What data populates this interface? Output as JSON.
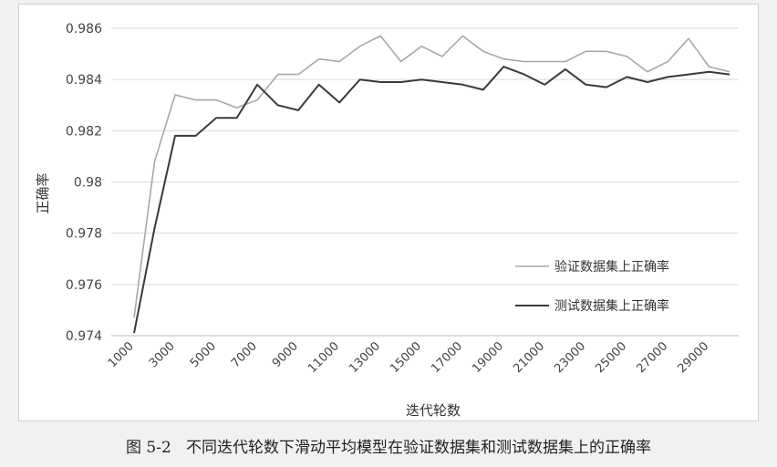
{
  "caption": "图 5-2   不同迭代轮数下滑动平均模型在验证数据集和测试数据集上的正确率",
  "chart_data": {
    "type": "line",
    "xlabel": "迭代轮数",
    "ylabel": "正确率",
    "x": [
      1000,
      2000,
      3000,
      4000,
      5000,
      6000,
      7000,
      8000,
      9000,
      10000,
      11000,
      12000,
      13000,
      14000,
      15000,
      16000,
      17000,
      18000,
      19000,
      20000,
      21000,
      22000,
      23000,
      24000,
      25000,
      26000,
      27000,
      28000,
      29000,
      30000
    ],
    "x_tick_labels": [
      "1000",
      "3000",
      "5000",
      "7000",
      "9000",
      "11000",
      "13000",
      "15000",
      "17000",
      "19000",
      "21000",
      "23000",
      "25000",
      "27000",
      "29000"
    ],
    "y_tick_labels": [
      "0.974",
      "0.976",
      "0.978",
      "0.98",
      "0.982",
      "0.984",
      "0.986"
    ],
    "ylim": [
      0.974,
      0.986
    ],
    "grid": "horizontal",
    "legend_position": "right",
    "series": [
      {
        "name": "验证数据集上正确率",
        "color": "#a8a8a8",
        "values": [
          0.9747,
          0.9808,
          0.9834,
          0.9832,
          0.9832,
          0.9829,
          0.9832,
          0.9842,
          0.9842,
          0.9848,
          0.9847,
          0.9853,
          0.9857,
          0.9847,
          0.9853,
          0.9849,
          0.9857,
          0.9851,
          0.9848,
          0.9847,
          0.9847,
          0.9847,
          0.9851,
          0.9851,
          0.9849,
          0.9843,
          0.9847,
          0.9856,
          0.9845,
          0.9843
        ]
      },
      {
        "name": "测试数据集上正确率",
        "color": "#3a3a3a",
        "values": [
          0.9741,
          0.9782,
          0.9818,
          0.9818,
          0.9825,
          0.9825,
          0.9838,
          0.983,
          0.9828,
          0.9838,
          0.9831,
          0.984,
          0.9839,
          0.9839,
          0.984,
          0.9839,
          0.9838,
          0.9836,
          0.9845,
          0.9842,
          0.9838,
          0.9844,
          0.9838,
          0.9837,
          0.9841,
          0.9839,
          0.9841,
          0.9842,
          0.9843,
          0.9842
        ]
      }
    ]
  }
}
